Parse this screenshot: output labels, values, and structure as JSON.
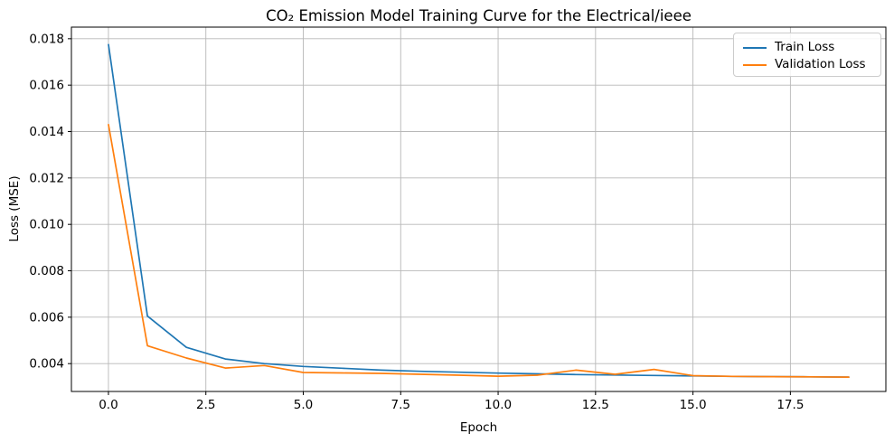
{
  "chart_data": {
    "type": "line",
    "title": "CO₂ Emission Model Training Curve for the Electrical/ieee",
    "xlabel": "Epoch",
    "ylabel": "Loss (MSE)",
    "x": [
      0,
      1,
      2,
      3,
      4,
      5,
      6,
      7,
      8,
      9,
      10,
      11,
      12,
      13,
      14,
      15,
      16,
      17,
      18,
      19
    ],
    "series": [
      {
        "name": "Train Loss",
        "color": "#1f77b4",
        "values": [
          0.01775,
          0.00605,
          0.0047,
          0.0042,
          0.004,
          0.00388,
          0.0038,
          0.00372,
          0.00367,
          0.00363,
          0.00359,
          0.00356,
          0.00353,
          0.00351,
          0.00349,
          0.00347,
          0.00345,
          0.00344,
          0.00343,
          0.00342
        ]
      },
      {
        "name": "Validation Loss",
        "color": "#ff7f0e",
        "values": [
          0.0143,
          0.00477,
          0.00424,
          0.00381,
          0.00392,
          0.00362,
          0.0036,
          0.00358,
          0.00354,
          0.0035,
          0.00346,
          0.0035,
          0.00372,
          0.00354,
          0.00375,
          0.00348,
          0.00345,
          0.00344,
          0.00343,
          0.00342
        ]
      }
    ],
    "xlim": [
      -0.95,
      19.95
    ],
    "ylim": [
      0.0028,
      0.0185
    ],
    "x_ticks": {
      "values": [
        0,
        2.5,
        5,
        7.5,
        10,
        12.5,
        15,
        17.5
      ],
      "labels": [
        "0.0",
        "2.5",
        "5.0",
        "7.5",
        "10.0",
        "12.5",
        "15.0",
        "17.5"
      ]
    },
    "y_ticks": {
      "values": [
        0.004,
        0.006,
        0.008,
        0.01,
        0.012,
        0.014,
        0.016,
        0.018
      ],
      "labels": [
        "0.004",
        "0.006",
        "0.008",
        "0.010",
        "0.012",
        "0.014",
        "0.016",
        "0.018"
      ]
    },
    "grid": true,
    "grid_color": "#b8b8b8",
    "spine_color": "#000000",
    "legend_position": "upper right"
  }
}
